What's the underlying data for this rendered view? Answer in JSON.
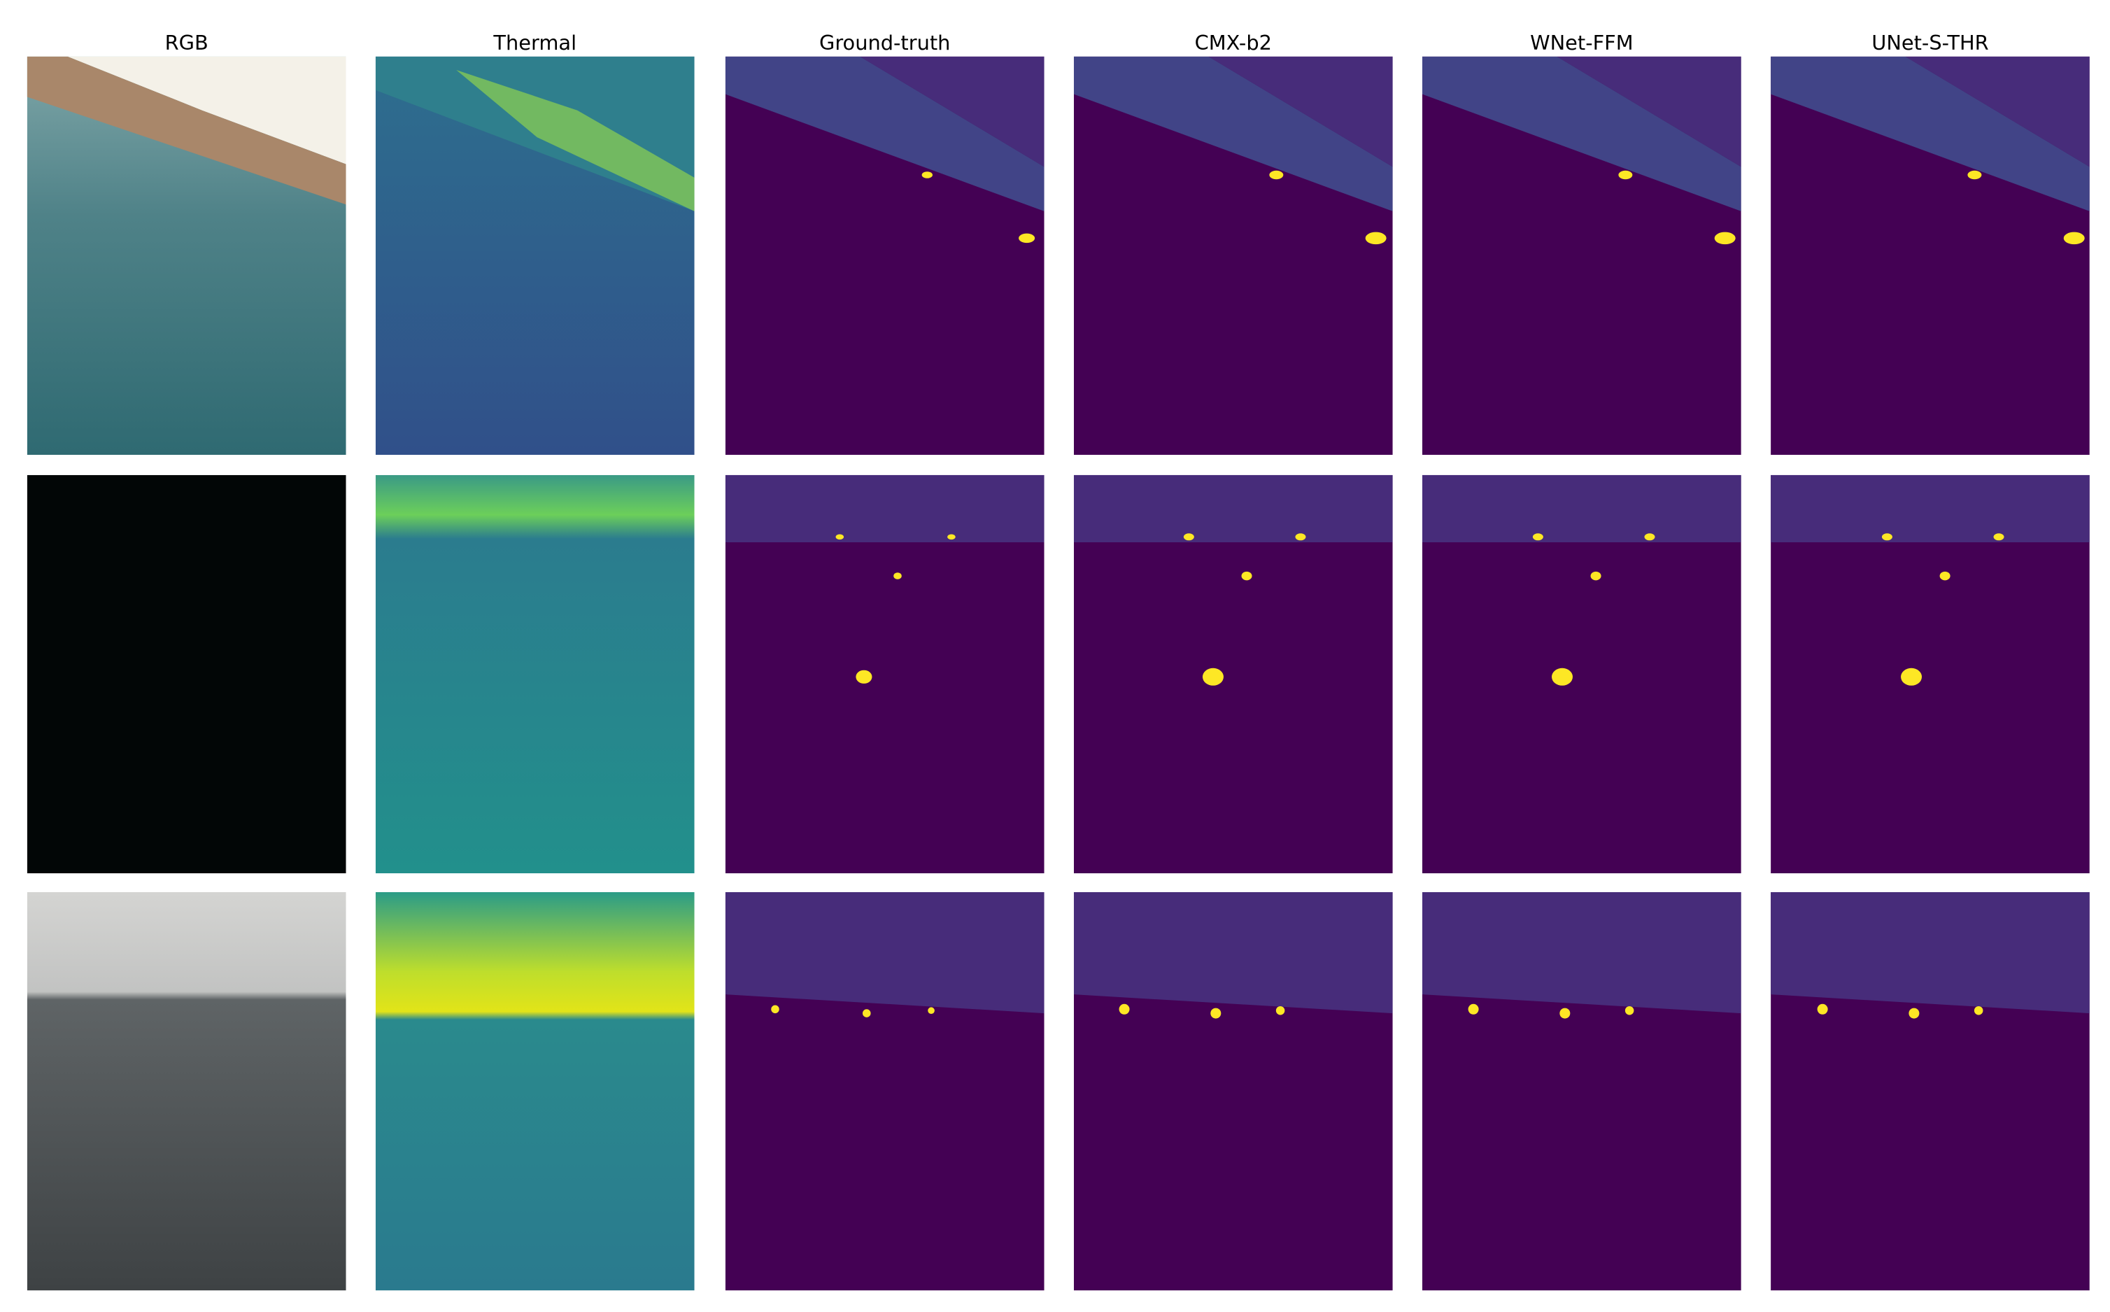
{
  "columns": [
    "RGB",
    "Thermal",
    "Ground-truth",
    "CMX-b2",
    "WNet-FFM",
    "UNet-S-THR"
  ]
}
